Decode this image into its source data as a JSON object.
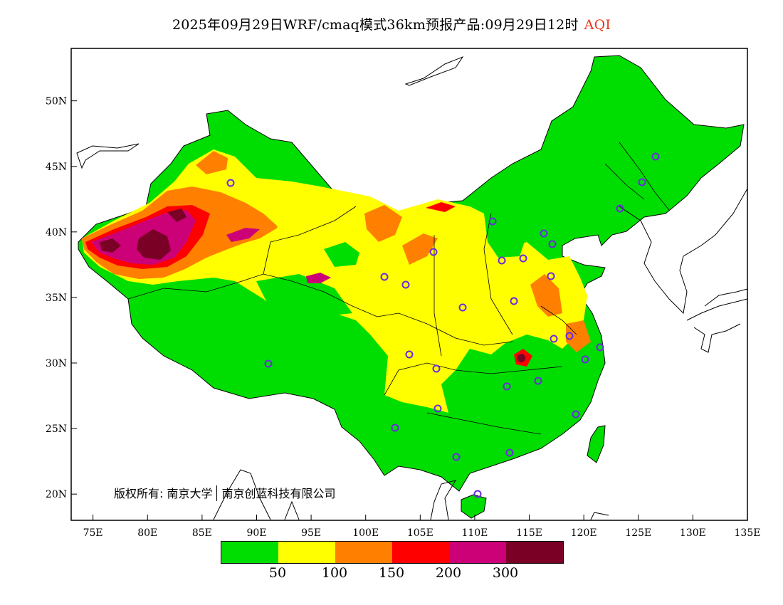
{
  "title": {
    "main": "2025年09月29日WRF/cmaq模式36km预报产品:09月29日12时",
    "variable": "AQI"
  },
  "map": {
    "lat_ticks": [
      "50N",
      "45N",
      "40N",
      "35N",
      "30N",
      "25N",
      "20N"
    ],
    "lon_ticks": [
      "75E",
      "80E",
      "85E",
      "90E",
      "95E",
      "100E",
      "105E",
      "110E",
      "115E",
      "120E",
      "125E",
      "130E",
      "135E"
    ],
    "lat_range": [
      18,
      54
    ],
    "lon_range": [
      73,
      135
    ],
    "colors": {
      "good": "#00dd00",
      "moderate": "#ffff00",
      "usg": "#ff8000",
      "unhealthy": "#ff0000",
      "very_unhealthy": "#cc0077",
      "hazardous": "#7a0026"
    }
  },
  "copyright": {
    "part1": "版权所有: 南京大学",
    "part2": "南京创蓝科技有限公司"
  },
  "legend": {
    "colors": [
      "#00dd00",
      "#ffff00",
      "#ff8000",
      "#ff0000",
      "#cc0077",
      "#7a0026"
    ],
    "labels": [
      "50",
      "100",
      "150",
      "200",
      "300"
    ]
  }
}
